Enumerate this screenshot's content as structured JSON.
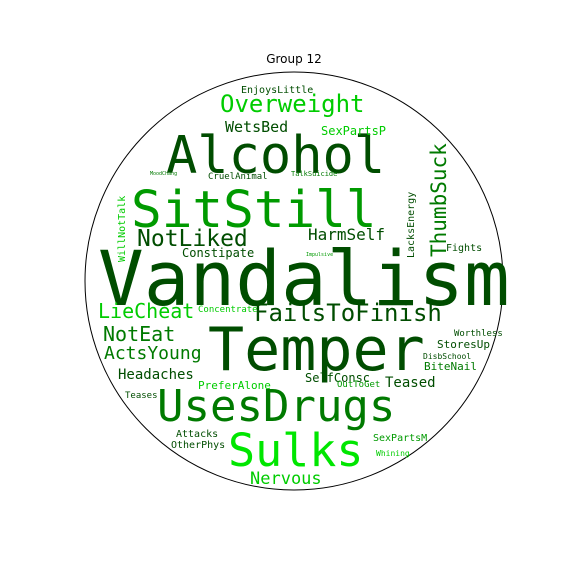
{
  "title": "Group 12",
  "colors": {
    "dark_green": "#004d00",
    "mid_green": "#007a00",
    "green": "#009a00",
    "bright_green": "#00cc00",
    "lime": "#00e600",
    "circle_stroke": "#000000"
  },
  "words": [
    {
      "text": "Vandalism",
      "color": "dark_green"
    },
    {
      "text": "Temper",
      "color": "dark_green"
    },
    {
      "text": "Alcohol",
      "color": "dark_green"
    },
    {
      "text": "SitStill",
      "color": "green"
    },
    {
      "text": "UsesDrugs",
      "color": "mid_green"
    },
    {
      "text": "Sulks",
      "color": "lime"
    },
    {
      "text": "Overweight",
      "color": "bright_green"
    },
    {
      "text": "FailsToFinish",
      "color": "dark_green"
    },
    {
      "text": "NotLiked",
      "color": "dark_green"
    },
    {
      "text": "ThumbSuck",
      "color": "mid_green"
    },
    {
      "text": "LieCheat",
      "color": "bright_green"
    },
    {
      "text": "NotEat",
      "color": "mid_green"
    },
    {
      "text": "ActsYoung",
      "color": "mid_green"
    },
    {
      "text": "Nervous",
      "color": "bright_green"
    },
    {
      "text": "HarmSelf",
      "color": "dark_green"
    },
    {
      "text": "WetsBed",
      "color": "dark_green"
    },
    {
      "text": "Headaches",
      "color": "dark_green"
    },
    {
      "text": "Teased",
      "color": "dark_green"
    },
    {
      "text": "SexPartsP",
      "color": "bright_green"
    },
    {
      "text": "Constipate",
      "color": "dark_green"
    },
    {
      "text": "SelfConsc",
      "color": "dark_green"
    },
    {
      "text": "PreferAlone",
      "color": "bright_green"
    },
    {
      "text": "BiteNail",
      "color": "mid_green"
    },
    {
      "text": "StoresUp",
      "color": "dark_green"
    },
    {
      "text": "EnjoysLittle",
      "color": "dark_green"
    },
    {
      "text": "LacksEnergy",
      "color": "dark_green"
    },
    {
      "text": "WillNotTalk",
      "color": "bright_green"
    },
    {
      "text": "Fights",
      "color": "dark_green"
    },
    {
      "text": "Attacks",
      "color": "dark_green"
    },
    {
      "text": "OtherPhys",
      "color": "dark_green"
    },
    {
      "text": "SexPartsM",
      "color": "green"
    },
    {
      "text": "Teases",
      "color": "dark_green"
    },
    {
      "text": "OutToGet",
      "color": "green"
    },
    {
      "text": "Worthless",
      "color": "dark_green"
    },
    {
      "text": "DisbSchool",
      "color": "dark_green"
    },
    {
      "text": "CruelAnimal",
      "color": "dark_green"
    },
    {
      "text": "Concentrate",
      "color": "bright_green"
    },
    {
      "text": "Whining",
      "color": "bright_green"
    },
    {
      "text": "TalkSuicide",
      "color": "mid_green"
    },
    {
      "text": "MoodChang",
      "color": "mid_green"
    },
    {
      "text": "Impulsive",
      "color": "green"
    }
  ]
}
